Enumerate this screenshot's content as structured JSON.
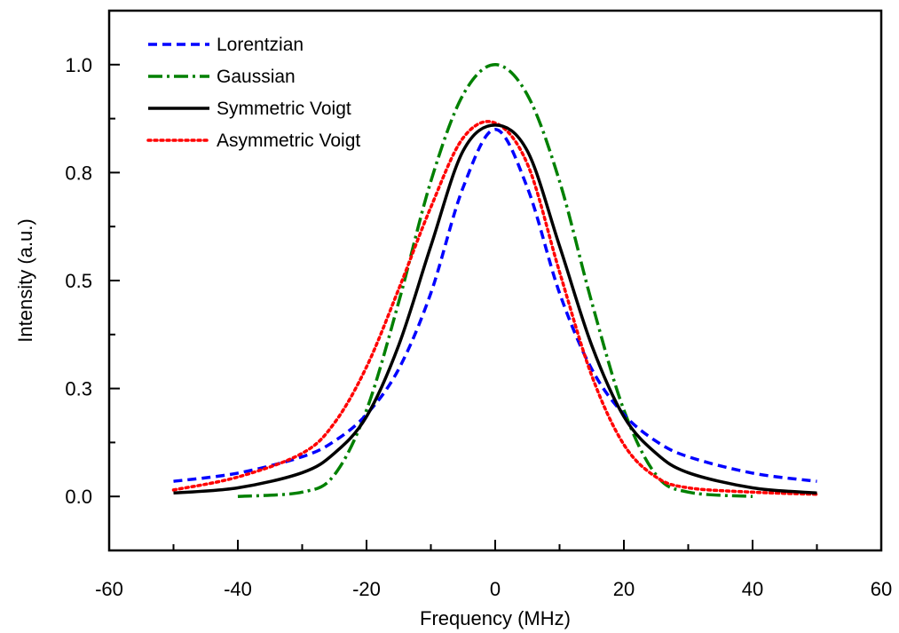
{
  "chart_data": {
    "type": "line",
    "title": "",
    "xlabel": "Frequency (MHz)",
    "ylabel": "Intensity (a.u.)",
    "xlim": [
      -60,
      60
    ],
    "ylim": [
      -0.125,
      1.125
    ],
    "xticks": [
      -60,
      -40,
      -20,
      0,
      20,
      40,
      60
    ],
    "xtick_labels": [
      "-60",
      "-40",
      "-20",
      "0",
      "20",
      "40",
      "60"
    ],
    "yticks": [
      0.0,
      0.25,
      0.5,
      0.75,
      1.0
    ],
    "ytick_labels": [
      "0.0",
      "0.3",
      "0.5",
      "0.8",
      "1.0"
    ],
    "grid": false,
    "legend_position": "top-left",
    "series": [
      {
        "name": "Lorentzian",
        "color": "#0000ff",
        "dash": "dash",
        "x": [
          -50,
          -40,
          -30,
          -25,
          -20,
          -15,
          -10,
          -5,
          0,
          5,
          10,
          15,
          20,
          25,
          30,
          40,
          50
        ],
        "y": [
          0.035,
          0.054,
          0.092,
          0.128,
          0.19,
          0.295,
          0.471,
          0.715,
          0.85,
          0.715,
          0.471,
          0.295,
          0.19,
          0.128,
          0.092,
          0.054,
          0.035
        ]
      },
      {
        "name": "Gaussian",
        "color": "#008000",
        "dash": "dashdot",
        "x": [
          -40,
          -30,
          -25,
          -20,
          -15,
          -10,
          -5,
          0,
          5,
          10,
          15,
          20,
          25,
          30,
          40
        ],
        "y": [
          0.0,
          0.01,
          0.05,
          0.2,
          0.45,
          0.73,
          0.93,
          1.0,
          0.93,
          0.73,
          0.45,
          0.2,
          0.05,
          0.01,
          0.0
        ]
      },
      {
        "name": "Symmetric Voigt",
        "color": "#000000",
        "dash": "solid",
        "x": [
          -50,
          -40,
          -30,
          -25,
          -20,
          -15,
          -10,
          -5,
          0,
          5,
          10,
          15,
          20,
          25,
          30,
          40,
          50
        ],
        "y": [
          0.008,
          0.02,
          0.055,
          0.1,
          0.185,
          0.35,
          0.58,
          0.8,
          0.86,
          0.8,
          0.58,
          0.35,
          0.185,
          0.1,
          0.055,
          0.02,
          0.008
        ]
      },
      {
        "name": "Asymmetric Voigt",
        "color": "#ff0000",
        "dash": "dot",
        "x": [
          -50,
          -40,
          -30,
          -25,
          -20,
          -15,
          -10,
          -5,
          0,
          5,
          10,
          15,
          20,
          25,
          30,
          40,
          50
        ],
        "y": [
          0.015,
          0.045,
          0.1,
          0.17,
          0.3,
          0.48,
          0.67,
          0.83,
          0.865,
          0.77,
          0.52,
          0.28,
          0.12,
          0.045,
          0.02,
          0.01,
          0.005
        ]
      }
    ]
  }
}
